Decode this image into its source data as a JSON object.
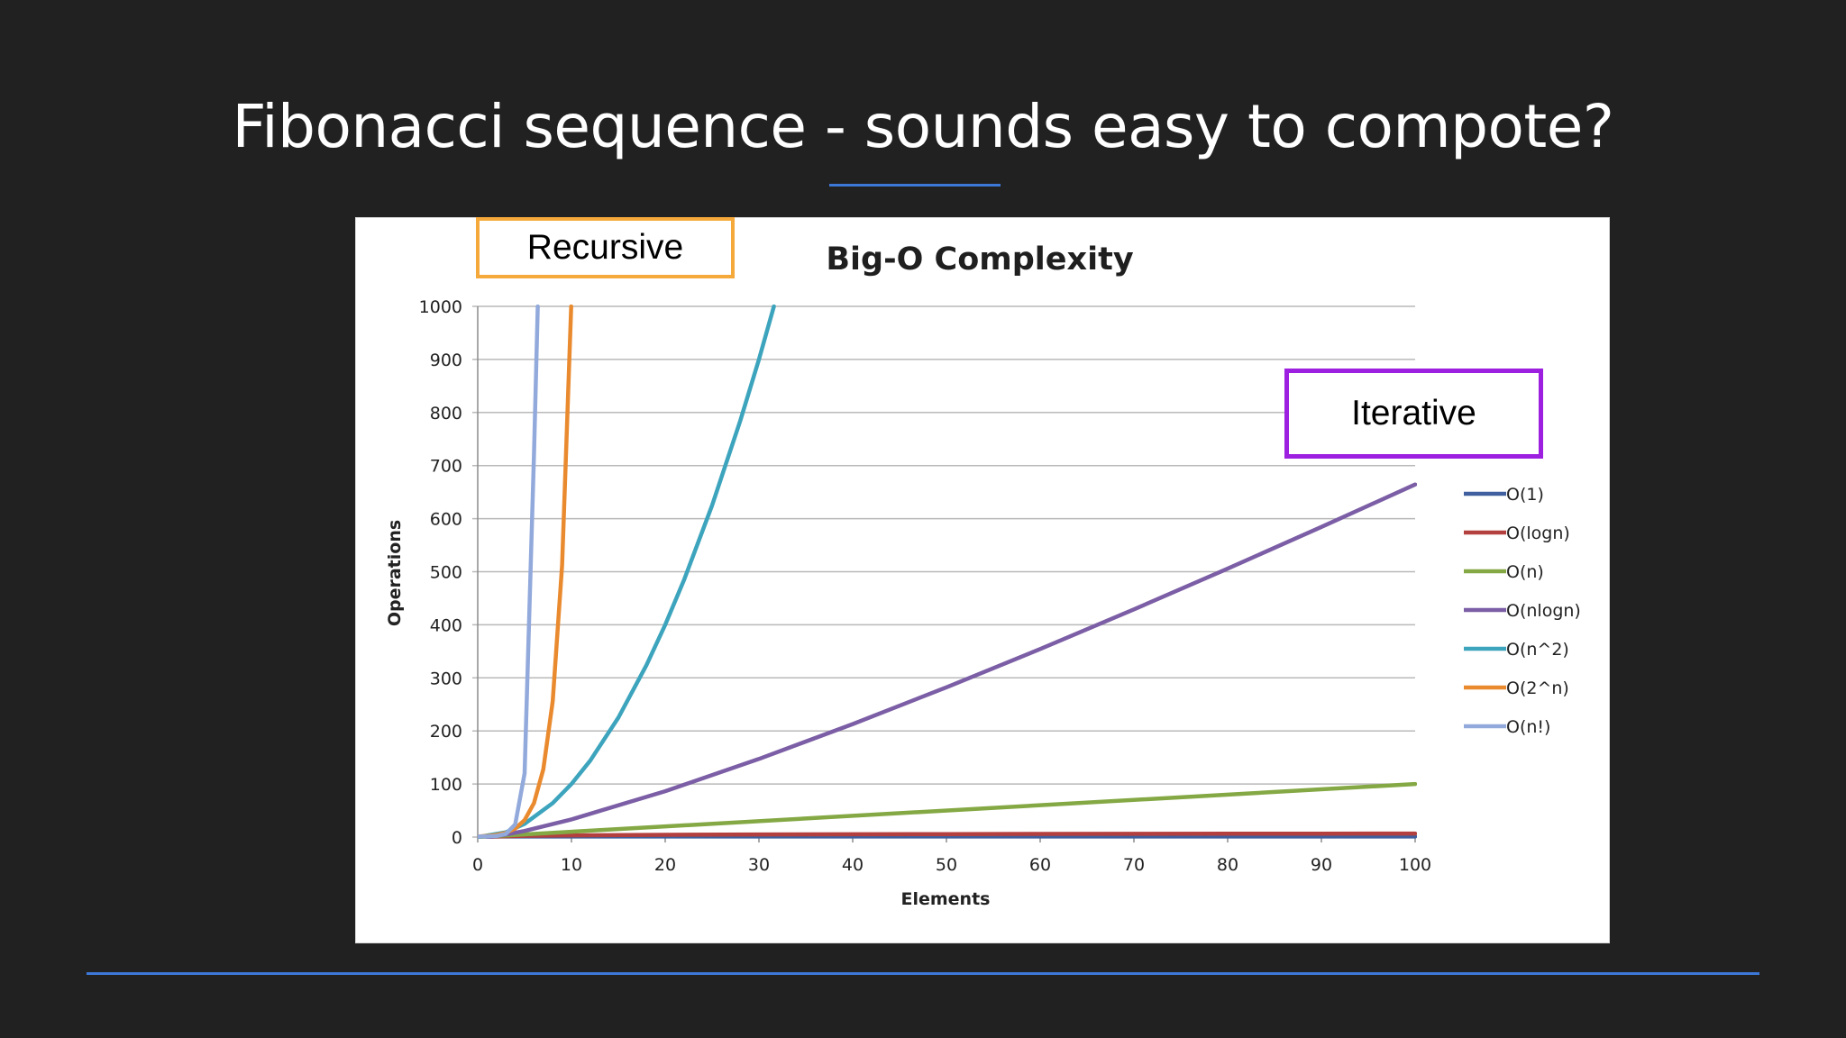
{
  "slide": {
    "title": "Fibonacci sequence - sounds easy to compote?"
  },
  "callouts": {
    "recursive": "Recursive",
    "iterative": "Iterative"
  },
  "colors": {
    "background": "#212121",
    "accent_rule": "#3d78d8",
    "recursive_border": "#f6a93b",
    "iterative_border": "#9d1fe0"
  },
  "chart_data": {
    "type": "line",
    "title": "Big-O Complexity",
    "xlabel": "Elements",
    "ylabel": "Operations",
    "xlim": [
      0,
      100
    ],
    "ylim": [
      0,
      1000
    ],
    "xticks": [
      0,
      10,
      20,
      30,
      40,
      50,
      60,
      70,
      80,
      90,
      100
    ],
    "yticks": [
      0,
      100,
      200,
      300,
      400,
      500,
      600,
      700,
      800,
      900,
      1000
    ],
    "grid": "horizontal",
    "legend_position": "right",
    "series": [
      {
        "name": "O(1)",
        "color": "#3f5f9e",
        "x": [
          0,
          100
        ],
        "y": [
          1,
          1
        ]
      },
      {
        "name": "O(logn)",
        "color": "#b3403f",
        "x": [
          1,
          2,
          5,
          10,
          20,
          30,
          40,
          50,
          60,
          70,
          80,
          90,
          100
        ],
        "y": [
          0,
          1,
          2.3,
          3.3,
          4.3,
          4.9,
          5.3,
          5.6,
          5.9,
          6.1,
          6.3,
          6.5,
          6.6
        ]
      },
      {
        "name": "O(n)",
        "color": "#84a844",
        "x": [
          0,
          100
        ],
        "y": [
          0,
          100
        ]
      },
      {
        "name": "O(nlogn)",
        "color": "#7b5ea5",
        "x": [
          1,
          2,
          3,
          5,
          10,
          20,
          30,
          40,
          50,
          60,
          70,
          80,
          90,
          100
        ],
        "y": [
          0,
          2,
          4.8,
          11.6,
          33.2,
          86.4,
          147.2,
          212.9,
          282.2,
          354.4,
          429.1,
          505.8,
          584.3,
          664.4
        ]
      },
      {
        "name": "O(n^2)",
        "color": "#3da4bd",
        "x": [
          0,
          3,
          5,
          8,
          10,
          12,
          15,
          18,
          20,
          22,
          25,
          28,
          30,
          31.6
        ],
        "y": [
          0,
          9,
          25,
          64,
          100,
          144,
          225,
          324,
          400,
          484,
          625,
          784,
          900,
          1000
        ]
      },
      {
        "name": "O(2^n)",
        "color": "#ea8a2f",
        "x": [
          0,
          1,
          2,
          3,
          4,
          5,
          6,
          7,
          8,
          9,
          9.97
        ],
        "y": [
          1,
          2,
          4,
          8,
          16,
          32,
          64,
          128,
          256,
          512,
          1000
        ]
      },
      {
        "name": "O(n!)",
        "color": "#92a9dc",
        "x": [
          0,
          1,
          2,
          3,
          4,
          5,
          6,
          6.4
        ],
        "y": [
          1,
          1,
          2,
          6,
          24,
          120,
          720,
          1000
        ]
      }
    ]
  }
}
